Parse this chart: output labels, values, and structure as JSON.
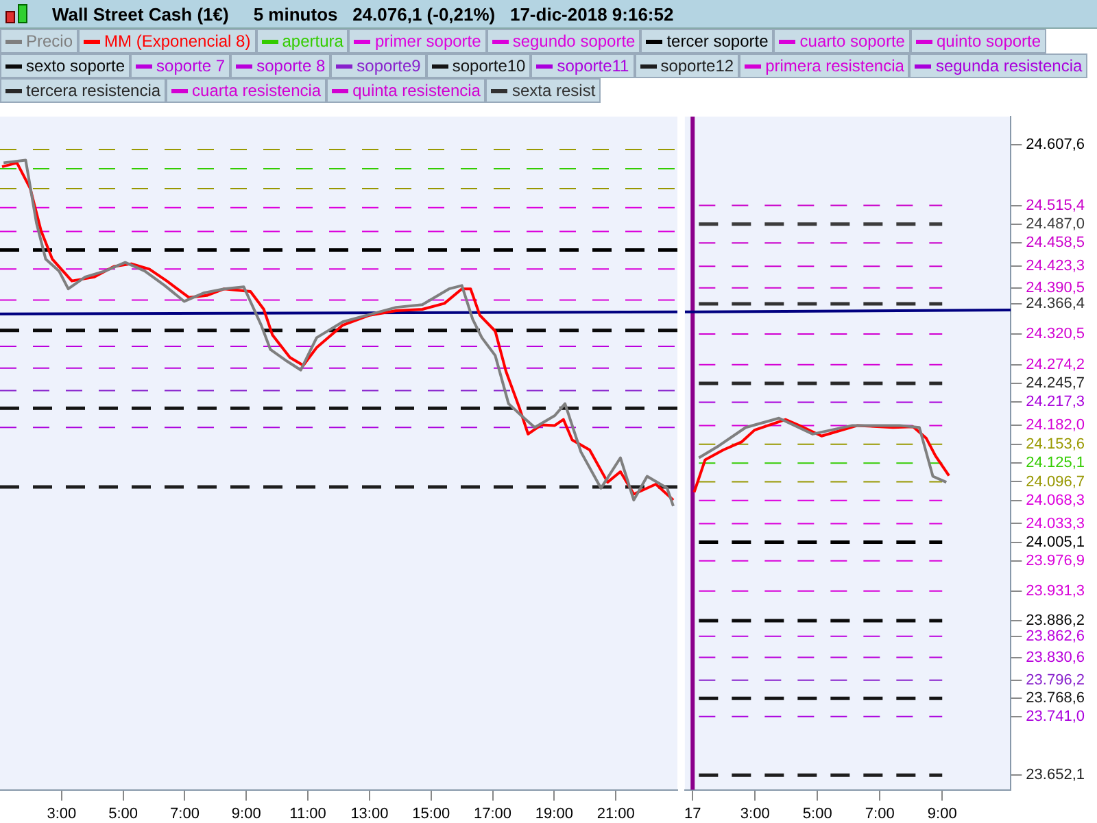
{
  "chart_data": [
    {
      "type": "line",
      "title": "Wall Street Cash (1€)",
      "subtitle": "5 minutos   24.076,1 (-0,21%)   17-dic-2018 9:16:52",
      "grid": false,
      "marker": "none",
      "tick_labels": "x",
      "xlim": [
        "2018-12-14T01:00",
        "2018-12-14T23:00"
      ],
      "xticks": [
        {
          "value": "2018-12-14T03:00",
          "label": "3:00"
        },
        {
          "value": "2018-12-14T05:00",
          "label": "5:00"
        },
        {
          "value": "2018-12-14T07:00",
          "label": "7:00"
        },
        {
          "value": "2018-12-14T09:00",
          "label": "9:00"
        },
        {
          "value": "2018-12-14T11:00",
          "label": "11:00"
        },
        {
          "value": "2018-12-14T13:00",
          "label": "13:00"
        },
        {
          "value": "2018-12-14T15:00",
          "label": "15:00"
        },
        {
          "value": "2018-12-14T17:00",
          "label": "17:00"
        },
        {
          "value": "2018-12-14T19:00",
          "label": "19:00"
        },
        {
          "value": "2018-12-14T21:00",
          "label": "21:00"
        }
      ],
      "ylim": [
        23630,
        24650
      ],
      "series": [
        {
          "color": "#7f7f7f",
          "line_style": "solid",
          "x": [
            "2018-12-14T01:07",
            "2018-12-14T01:50",
            "2018-12-14T02:11",
            "2018-12-14T02:29",
            "2018-12-14T02:55",
            "2018-12-14T03:13",
            "2018-12-14T03:46",
            "2018-12-14T04:25",
            "2018-12-14T05:04",
            "2018-12-14T05:42",
            "2018-12-14T06:21",
            "2018-12-14T06:59",
            "2018-12-14T07:38",
            "2018-12-14T08:17",
            "2018-12-14T08:55",
            "2018-12-14T09:29",
            "2018-12-14T09:47",
            "2018-12-14T10:20",
            "2018-12-14T10:46",
            "2018-12-14T11:17",
            "2018-12-14T12:08",
            "2018-12-14T13:52",
            "2018-12-14T14:43",
            "2018-12-14T15:35",
            "2018-12-14T16:00",
            "2018-12-14T16:21",
            "2018-12-14T16:39",
            "2018-12-14T17:05",
            "2018-12-14T17:31",
            "2018-12-14T17:56",
            "2018-12-14T18:22",
            "2018-12-14T19:01",
            "2018-12-14T19:21",
            "2018-12-14T19:52",
            "2018-12-14T20:31",
            "2018-12-14T21:09",
            "2018-12-14T21:35",
            "2018-12-14T22:01",
            "2018-12-14T22:40",
            "2018-12-14T22:52"
          ],
          "values": [
            24580,
            24584,
            24489,
            24434,
            24416,
            24389,
            24407,
            24416,
            24429,
            24416,
            24394,
            24370,
            24383,
            24389,
            24392,
            24334,
            24297,
            24279,
            24266,
            24315,
            24339,
            24361,
            24365,
            24389,
            24394,
            24343,
            24315,
            24288,
            24215,
            24197,
            24179,
            24197,
            24215,
            24142,
            24087,
            24133,
            24069,
            24105,
            24087,
            24060
          ]
        },
        {
          "color": "#ff0000",
          "line_style": "solid",
          "x": [
            "2018-12-14T01:04",
            "2018-12-14T01:33",
            "2018-12-14T01:59",
            "2018-12-14T02:20",
            "2018-12-14T02:42",
            "2018-12-14T03:20",
            "2018-12-14T04:04",
            "2018-12-14T04:42",
            "2018-12-14T05:16",
            "2018-12-14T05:51",
            "2018-12-14T06:25",
            "2018-12-14T07:08",
            "2018-12-14T07:43",
            "2018-12-14T08:17",
            "2018-12-14T09:08",
            "2018-12-14T09:34",
            "2018-12-14T09:51",
            "2018-12-14T10:25",
            "2018-12-14T10:51",
            "2018-12-14T11:17",
            "2018-12-14T12:08",
            "2018-12-14T13:00",
            "2018-12-14T13:52",
            "2018-12-14T14:43",
            "2018-12-14T15:26",
            "2018-12-14T16:00",
            "2018-12-14T16:17",
            "2018-12-14T16:35",
            "2018-12-14T17:05",
            "2018-12-14T17:26",
            "2018-12-14T17:52",
            "2018-12-14T18:09",
            "2018-12-14T18:35",
            "2018-12-14T19:01",
            "2018-12-14T19:18",
            "2018-12-14T19:35",
            "2018-12-14T20:09",
            "2018-12-14T20:44",
            "2018-12-14T21:09",
            "2018-12-14T21:35",
            "2018-12-14T22:18",
            "2018-12-14T22:52"
          ],
          "values": [
            24574,
            24580,
            24541,
            24477,
            24434,
            24401,
            24407,
            24423,
            24427,
            24419,
            24401,
            24376,
            24379,
            24389,
            24385,
            24358,
            24319,
            24285,
            24273,
            24300,
            24334,
            24349,
            24356,
            24358,
            24367,
            24389,
            24389,
            24349,
            24325,
            24264,
            24209,
            24169,
            24183,
            24182,
            24191,
            24160,
            24145,
            24096,
            24112,
            24078,
            24093,
            24069
          ]
        },
        {
          "color": "#33cc00",
          "line_style": "dashed",
          "x": [
            "2018-12-14T01:00",
            "2018-12-14T23:00"
          ],
          "values": [
            24571,
            24571
          ]
        },
        {
          "color": "#dd00dd",
          "line_style": "dashed",
          "x": [
            "2018-12-14T01:00",
            "2018-12-14T23:00"
          ],
          "values": [
            24512,
            24512
          ]
        },
        {
          "color": "#db00db",
          "line_style": "dashed",
          "x": [
            "2018-12-14T01:00",
            "2018-12-14T23:00"
          ],
          "values": [
            24476,
            24476
          ]
        },
        {
          "color": "#000000",
          "line_style": "dashed",
          "x": [
            "2018-12-14T01:00",
            "2018-12-14T23:00"
          ],
          "values": [
            24448,
            24448
          ]
        },
        {
          "color": "#d900d9",
          "line_style": "dashed",
          "x": [
            "2018-12-14T01:00",
            "2018-12-14T23:00"
          ],
          "values": [
            24419,
            24419
          ]
        },
        {
          "color": "#d700d7",
          "line_style": "dashed",
          "x": [
            "2018-12-14T01:00",
            "2018-12-14T23:00"
          ],
          "values": [
            24372,
            24372
          ]
        },
        {
          "color": "#0a0a0a",
          "line_style": "dashed",
          "x": [
            "2018-12-14T01:00",
            "2018-12-14T23:00"
          ],
          "values": [
            24326,
            24326
          ]
        },
        {
          "color": "#bb00dd",
          "line_style": "dashed",
          "x": [
            "2018-12-14T01:00",
            "2018-12-14T23:00"
          ],
          "values": [
            24302,
            24302
          ]
        },
        {
          "color": "#b900db",
          "line_style": "dashed",
          "x": [
            "2018-12-14T01:00",
            "2018-12-14T23:00"
          ],
          "values": [
            24269,
            24269
          ]
        },
        {
          "color": "#8822cc",
          "line_style": "dashed",
          "x": [
            "2018-12-14T01:00",
            "2018-12-14T23:00"
          ],
          "values": [
            24235,
            24235
          ]
        },
        {
          "color": "#141414",
          "line_style": "dashed",
          "x": [
            "2018-12-14T01:00",
            "2018-12-14T23:00"
          ],
          "values": [
            24208,
            24208
          ]
        },
        {
          "color": "#aa00dd",
          "line_style": "dashed",
          "x": [
            "2018-12-14T01:00",
            "2018-12-14T23:00"
          ],
          "values": [
            24179,
            24179
          ]
        },
        {
          "color": "#1e1e1e",
          "line_style": "dashed",
          "x": [
            "2018-12-14T01:00",
            "2018-12-14T23:00"
          ],
          "values": [
            24089,
            24089
          ]
        },
        {
          "color": "#999900",
          "line_style": "dashed",
          "x": [
            "2018-12-14T01:00",
            "2018-12-14T23:00"
          ],
          "values": [
            24600,
            24600
          ]
        },
        {
          "color": "#979700",
          "line_style": "dashed",
          "x": [
            "2018-12-14T01:00",
            "2018-12-14T23:00"
          ],
          "values": [
            24541,
            24541
          ]
        },
        {
          "color": "#000080",
          "line_style": "solid",
          "x": [
            "2018-12-14T01:00",
            "2018-12-14T23:00"
          ],
          "values": [
            24351,
            24354
          ]
        }
      ]
    },
    {
      "type": "line",
      "legend": "top left",
      "grid": false,
      "marker": "none",
      "xlim": [
        "2018-12-17T00:45",
        "2018-12-17T11:12"
      ],
      "xticks": [
        {
          "value": "2018-12-17T01:00",
          "label": "17"
        },
        {
          "value": "2018-12-17T03:00",
          "label": "3:00"
        },
        {
          "value": "2018-12-17T05:00",
          "label": "5:00"
        },
        {
          "value": "2018-12-17T07:00",
          "label": "7:00"
        },
        {
          "value": "2018-12-17T09:00",
          "label": "9:00"
        }
      ],
      "ylim": [
        23630,
        24650
      ],
      "yticks": [
        {
          "value": 24607.6,
          "label": "24.607,6"
        },
        {
          "value": 24515.4,
          "label": "24.515,4"
        },
        {
          "value": 24487.0,
          "label": "24.487,0"
        },
        {
          "value": 24458.5,
          "label": "24.458,5"
        },
        {
          "value": 24423.3,
          "label": "24.423,3"
        },
        {
          "value": 24390.5,
          "label": "24.390,5"
        },
        {
          "value": 24366.4,
          "label": "24.366,4"
        },
        {
          "value": 24320.5,
          "label": "24.320,5"
        },
        {
          "value": 24274.2,
          "label": "24.274,2"
        },
        {
          "value": 24245.7,
          "label": "24.245,7"
        },
        {
          "value": 24217.3,
          "label": "24.217,3"
        },
        {
          "value": 24182.0,
          "label": "24.182,0"
        },
        {
          "value": 24153.6,
          "label": "24.153,6"
        },
        {
          "value": 24125.1,
          "label": "24.125,1"
        },
        {
          "value": 24096.7,
          "label": "24.096,7"
        },
        {
          "value": 24068.3,
          "label": "24.068,3"
        },
        {
          "value": 24033.3,
          "label": "24.033,3"
        },
        {
          "value": 24005.1,
          "label": "24.005,1"
        },
        {
          "value": 23976.9,
          "label": "23.976,9"
        },
        {
          "value": 23931.3,
          "label": "23.931,3"
        },
        {
          "value": 23886.2,
          "label": "23.886,2"
        },
        {
          "value": 23862.6,
          "label": "23.862,6"
        },
        {
          "value": 23830.6,
          "label": "23.830,6"
        },
        {
          "value": 23796.2,
          "label": "23.796,2"
        },
        {
          "value": 23768.6,
          "label": "23.768,6"
        },
        {
          "value": 23741.0,
          "label": "23.741,0"
        },
        {
          "value": 23652.1,
          "label": "23.652,1"
        }
      ],
      "ref_lines": [
        {
          "axis": "x",
          "value": "2018-12-17T01:00",
          "color": "#8b008b"
        }
      ],
      "series": [
        {
          "name": "Precio",
          "color": "#7f7f7f",
          "line_style": "solid",
          "x": [
            "2018-12-17T01:12",
            "2018-12-17T01:50",
            "2018-12-17T02:42",
            "2018-12-17T03:46",
            "2018-12-17T04:51",
            "2018-12-17T06:07",
            "2018-12-17T07:38",
            "2018-12-17T08:16",
            "2018-12-17T08:42",
            "2018-12-17T09:08"
          ],
          "values": [
            24133,
            24151,
            24179,
            24193,
            24169,
            24182,
            24182,
            24179,
            24105,
            24096
          ]
        },
        {
          "name": "MM (Exponencial 8)",
          "color": "#ff0000",
          "line_style": "solid",
          "x": [
            "2018-12-17T01:03",
            "2018-12-17T01:24",
            "2018-12-17T01:59",
            "2018-12-17T02:34",
            "2018-12-17T02:59",
            "2018-12-17T03:59",
            "2018-12-17T04:25",
            "2018-12-17T05:08",
            "2018-12-17T06:17",
            "2018-12-17T07:25",
            "2018-12-17T08:04",
            "2018-12-17T08:29",
            "2018-12-17T08:47",
            "2018-12-17T09:13"
          ],
          "values": [
            24081,
            24130,
            24145,
            24157,
            24175,
            24191,
            24182,
            24166,
            24182,
            24179,
            24180,
            24163,
            24136,
            24106
          ]
        },
        {
          "name": "apertura",
          "color": "#33cc00",
          "line_style": "dashed",
          "x": [
            "2018-12-17T01:12",
            "2018-12-17T09:00"
          ],
          "values": [
            24125.1,
            24125.1
          ]
        },
        {
          "name": "primer soporte",
          "color": "#dd00dd",
          "line_style": "dashed",
          "x": [
            "2018-12-17T01:12",
            "2018-12-17T09:00"
          ],
          "values": [
            24068.3,
            24068.3
          ]
        },
        {
          "name": "segundo soporte",
          "color": "#db00db",
          "line_style": "dashed",
          "x": [
            "2018-12-17T01:12",
            "2018-12-17T09:00"
          ],
          "values": [
            24033.3,
            24033.3
          ]
        },
        {
          "name": "tercer soporte",
          "color": "#000000",
          "line_style": "dashed",
          "x": [
            "2018-12-17T01:12",
            "2018-12-17T09:00"
          ],
          "values": [
            24005.1,
            24005.1
          ]
        },
        {
          "name": "cuarto soporte",
          "color": "#d900d9",
          "line_style": "dashed",
          "x": [
            "2018-12-17T01:12",
            "2018-12-17T09:00"
          ],
          "values": [
            23976.9,
            23976.9
          ]
        },
        {
          "name": "quinto soporte",
          "color": "#d700d7",
          "line_style": "dashed",
          "x": [
            "2018-12-17T01:12",
            "2018-12-17T09:00"
          ],
          "values": [
            23931.3,
            23931.3
          ]
        },
        {
          "name": "sexto soporte",
          "color": "#0a0a0a",
          "line_style": "dashed",
          "x": [
            "2018-12-17T01:12",
            "2018-12-17T09:00"
          ],
          "values": [
            23886.2,
            23886.2
          ]
        },
        {
          "name": "soporte 7",
          "color": "#bb00dd",
          "line_style": "dashed",
          "x": [
            "2018-12-17T01:12",
            "2018-12-17T09:00"
          ],
          "values": [
            23862.6,
            23862.6
          ]
        },
        {
          "name": "soporte 8",
          "color": "#b900db",
          "line_style": "dashed",
          "x": [
            "2018-12-17T01:12",
            "2018-12-17T09:00"
          ],
          "values": [
            23830.6,
            23830.6
          ]
        },
        {
          "name": "soporte9",
          "color": "#8822cc",
          "line_style": "dashed",
          "x": [
            "2018-12-17T01:12",
            "2018-12-17T09:00"
          ],
          "values": [
            23796.2,
            23796.2
          ]
        },
        {
          "name": "soporte10",
          "color": "#141414",
          "line_style": "dashed",
          "x": [
            "2018-12-17T01:12",
            "2018-12-17T09:00"
          ],
          "values": [
            23768.6,
            23768.6
          ]
        },
        {
          "name": "soporte11",
          "color": "#aa00dd",
          "line_style": "dashed",
          "x": [
            "2018-12-17T01:12",
            "2018-12-17T09:00"
          ],
          "values": [
            23741.0,
            23741.0
          ]
        },
        {
          "name": "soporte12",
          "color": "#1e1e1e",
          "line_style": "dashed",
          "x": [
            "2018-12-17T01:12",
            "2018-12-17T09:00"
          ],
          "values": [
            23652.1,
            23652.1
          ]
        },
        {
          "name": "primera resistencia",
          "color": "#d500d5",
          "line_style": "dashed",
          "x": [
            "2018-12-17T01:12",
            "2018-12-17T09:00"
          ],
          "values": [
            24182.0,
            24182.0
          ]
        },
        {
          "name": "segunda resistencia",
          "color": "#a800db",
          "line_style": "dashed",
          "x": [
            "2018-12-17T01:12",
            "2018-12-17T09:00"
          ],
          "values": [
            24217.3,
            24217.3
          ]
        },
        {
          "name": "tercera resistencia",
          "color": "#282828",
          "line_style": "dashed",
          "x": [
            "2018-12-17T01:12",
            "2018-12-17T09:00"
          ],
          "values": [
            24245.7,
            24245.7
          ]
        },
        {
          "name": "cuarta resistencia",
          "color": "#d300d3",
          "line_style": "dashed",
          "x": [
            "2018-12-17T01:12",
            "2018-12-17T09:00"
          ],
          "values": [
            24274.2,
            24274.2
          ]
        },
        {
          "name": "quinta resistencia",
          "color": "#d100d1",
          "line_style": "dashed",
          "x": [
            "2018-12-17T01:12",
            "2018-12-17T09:00"
          ],
          "values": [
            24320.5,
            24320.5
          ]
        },
        {
          "name": "sexta resist",
          "color": "#323232",
          "line_style": "dashed",
          "x": [
            "2018-12-17T01:12",
            "2018-12-17T09:00"
          ],
          "values": [
            24366.4,
            24366.4
          ]
        },
        {
          "color": "#cf00cf",
          "line_style": "dashed",
          "x": [
            "2018-12-17T01:12",
            "2018-12-17T09:00"
          ],
          "values": [
            24390.5,
            24390.5
          ]
        },
        {
          "color": "#cd00cd",
          "line_style": "dashed",
          "x": [
            "2018-12-17T01:12",
            "2018-12-17T09:00"
          ],
          "values": [
            24423.3,
            24423.3
          ]
        },
        {
          "color": "#cb00cb",
          "line_style": "dashed",
          "x": [
            "2018-12-17T01:12",
            "2018-12-17T09:00"
          ],
          "values": [
            24458.5,
            24458.5
          ]
        },
        {
          "color": "#3c3c3c",
          "line_style": "dashed",
          "x": [
            "2018-12-17T01:12",
            "2018-12-17T09:00"
          ],
          "values": [
            24487.0,
            24487.0
          ]
        },
        {
          "color": "#c900c9",
          "line_style": "dashed",
          "x": [
            "2018-12-17T01:12",
            "2018-12-17T09:00"
          ],
          "values": [
            24515.4,
            24515.4
          ]
        },
        {
          "color": "#999900",
          "line_style": "dashed",
          "x": [
            "2018-12-17T01:12",
            "2018-12-17T09:00"
          ],
          "values": [
            24153.6,
            24153.6
          ]
        },
        {
          "color": "#979700",
          "line_style": "dashed",
          "x": [
            "2018-12-17T01:12",
            "2018-12-17T09:00"
          ],
          "values": [
            24096.7,
            24096.7
          ]
        },
        {
          "color": "#000080",
          "line_style": "solid",
          "x": [
            "2018-12-17T00:45",
            "2018-12-17T11:12"
          ],
          "values": [
            24354,
            24357
          ]
        }
      ]
    }
  ]
}
